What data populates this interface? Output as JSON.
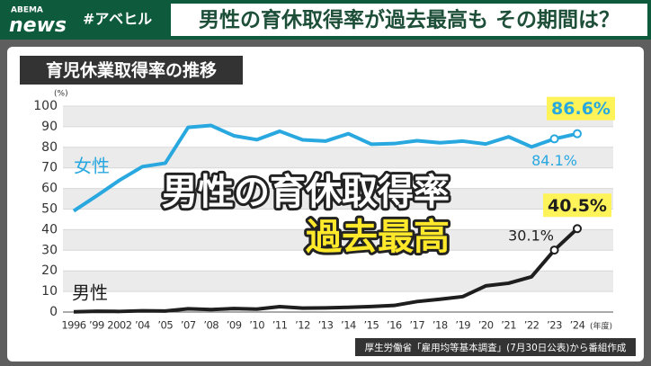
{
  "header": {
    "logo_top": "ABEMA",
    "logo_bottom": "news",
    "hashtag": "#アベヒル",
    "headline": "男性の育休取得率が過去最高も その期間は？"
  },
  "chart_data": {
    "type": "line",
    "title": "育児休業取得率の推移",
    "y_unit": "(%)",
    "x_unit": "(年度)",
    "categories": [
      "1996",
      "’99",
      "2002",
      "’04",
      "’05",
      "’07",
      "’08",
      "’09",
      "’10",
      "’11",
      "’12",
      "’13",
      "’14",
      "’15",
      "’16",
      "’17",
      "’18",
      "’19",
      "’20",
      "’21",
      "’22",
      "’23",
      "’24"
    ],
    "series": [
      {
        "name": "女性",
        "color": "#29a8e0",
        "values": [
          49.1,
          56.4,
          64.0,
          70.6,
          72.3,
          89.7,
          90.6,
          85.6,
          83.7,
          87.8,
          83.6,
          83.0,
          86.6,
          81.5,
          81.8,
          83.2,
          82.2,
          83.0,
          81.6,
          85.1,
          80.2,
          84.1,
          86.6
        ],
        "value_labels": [
          null,
          null,
          null,
          null,
          null,
          null,
          null,
          null,
          null,
          null,
          null,
          null,
          null,
          null,
          null,
          null,
          null,
          null,
          null,
          null,
          null,
          "84.1%",
          "86.6%"
        ]
      },
      {
        "name": "男性",
        "color": "#1e1e1e",
        "values": [
          0.1,
          0.4,
          0.3,
          0.6,
          0.5,
          1.6,
          1.2,
          1.7,
          1.4,
          2.6,
          1.9,
          2.0,
          2.3,
          2.7,
          3.2,
          5.1,
          6.2,
          7.5,
          12.7,
          14.0,
          17.1,
          30.1,
          40.5
        ],
        "value_labels": [
          null,
          null,
          null,
          null,
          null,
          null,
          null,
          null,
          null,
          null,
          null,
          null,
          null,
          null,
          null,
          null,
          null,
          null,
          null,
          null,
          null,
          "30.1%",
          "40.5%"
        ]
      }
    ],
    "ylim": [
      0,
      100
    ],
    "yticks": [
      0,
      10,
      20,
      30,
      40,
      50,
      60,
      70,
      80,
      90,
      100
    ],
    "grid": true,
    "overlay": [
      "男性の育休取得率",
      "過去最高"
    ],
    "source": "厚生労働省「雇用均等基本調査」(7月30日公表)から番組作成"
  }
}
